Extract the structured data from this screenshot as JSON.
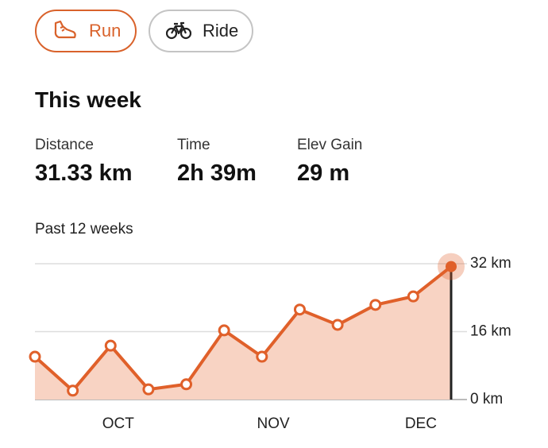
{
  "tabs": [
    "Run",
    "Ride"
  ],
  "section_title": "This week",
  "stats": [
    {
      "label": "Distance",
      "value": "31.33 km"
    },
    {
      "label": "Time",
      "value": "2h 39m"
    },
    {
      "label": "Elev Gain",
      "value": "29 m"
    }
  ],
  "chart_data": {
    "type": "area",
    "title": "Past 12 weeks",
    "x": [
      0,
      1,
      2,
      3,
      4,
      5,
      6,
      7,
      8,
      9,
      10,
      11
    ],
    "values": [
      10.1,
      2.1,
      12.7,
      2.4,
      3.6,
      16.3,
      10.1,
      21.2,
      17.6,
      22.3,
      24.3,
      31.33
    ],
    "color": "#e0602a",
    "fill": "#f8d3c3",
    "xlim": [
      0,
      11
    ],
    "xticks": [
      {
        "value": 2.2,
        "label": "OCT"
      },
      {
        "value": 6.3,
        "label": "NOV"
      },
      {
        "value": 10.2,
        "label": "DEC"
      }
    ],
    "ylim": [
      0,
      32
    ],
    "yticks": [
      {
        "value": 0,
        "label": "0 km"
      },
      {
        "value": 16,
        "label": "16 km"
      },
      {
        "value": 32,
        "label": "32 km"
      }
    ],
    "grid": true
  }
}
